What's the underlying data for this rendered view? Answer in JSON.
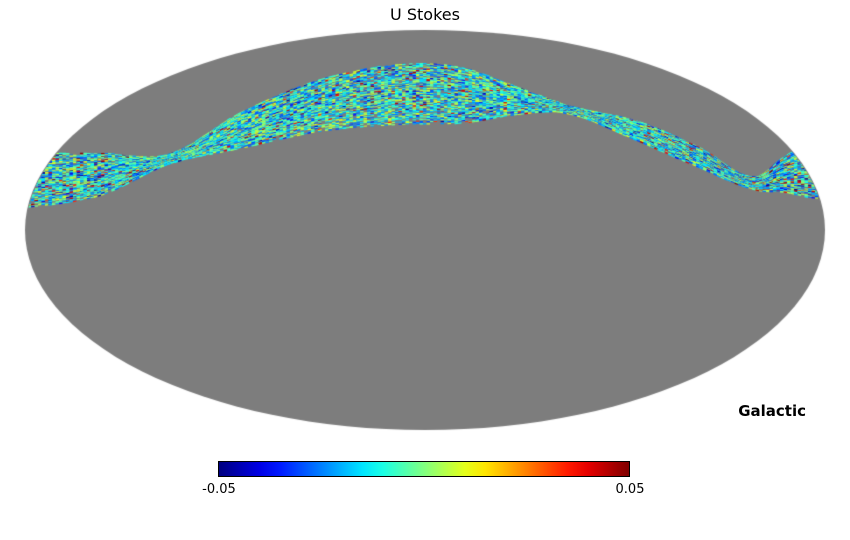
{
  "chart_data": {
    "type": "heatmap",
    "projection": "mollweide",
    "title": "U Stokes",
    "coordinate_system": "Galactic",
    "colormap": "jet",
    "colorbar": {
      "min": -0.05,
      "max": 0.05,
      "min_label": "-0.05",
      "max_label": "0.05"
    },
    "value_range": [
      -0.05,
      0.05
    ],
    "unobserved_color": "#7d7d7d",
    "background_color": "#ffffff",
    "description": "Partial-sky U Stokes polarization map in Mollweide projection: a wavy scan band crosses the upper sky, values mostly near 0 (green/cyan) with scattered blue and red outliers near +/-0.05; the rest of the sky is unobserved gray.",
    "scan_band": {
      "coords_note": "Each point is [x_fraction (-1..1 across ellipse), y_offset (fraction of vertical semi-axis, negative = up), half_width (fraction of vertical semi-axis)]",
      "centerline": [
        [
          -1.0,
          -0.25,
          0.135
        ],
        [
          -0.81,
          -0.28,
          0.105
        ],
        [
          -0.64,
          -0.355,
          0.025
        ],
        [
          -0.46,
          -0.5,
          0.09
        ],
        [
          -0.26,
          -0.625,
          0.13
        ],
        [
          -0.06,
          -0.68,
          0.15
        ],
        [
          0.09,
          -0.675,
          0.14
        ],
        [
          0.24,
          -0.645,
          0.065
        ],
        [
          0.36,
          -0.6,
          0.02
        ],
        [
          0.54,
          -0.49,
          0.05
        ],
        [
          0.69,
          -0.36,
          0.05
        ],
        [
          0.82,
          -0.235,
          0.03
        ],
        [
          0.9,
          -0.28,
          0.09
        ],
        [
          0.96,
          -0.3,
          0.135
        ],
        [
          1.0,
          -0.3,
          0.14
        ]
      ]
    }
  }
}
